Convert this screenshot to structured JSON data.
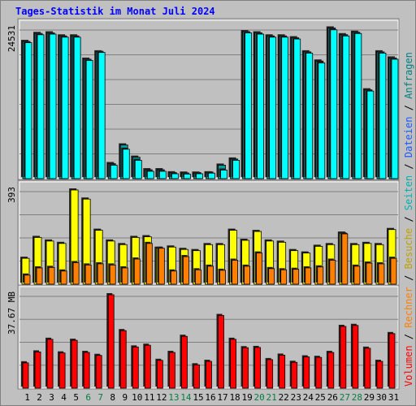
{
  "chart_data": {
    "type": "bar",
    "title": "Tages-Statistik im Monat Juli 2024",
    "categories": [
      "1",
      "2",
      "3",
      "4",
      "5",
      "6",
      "7",
      "8",
      "9",
      "10",
      "11",
      "12",
      "13",
      "14",
      "15",
      "16",
      "17",
      "18",
      "19",
      "20",
      "21",
      "22",
      "23",
      "24",
      "25",
      "26",
      "27",
      "28",
      "29",
      "30",
      "31"
    ],
    "weekend_days": [
      "6",
      "7",
      "13",
      "14",
      "20",
      "21",
      "27",
      "28"
    ],
    "panels": [
      {
        "id": "requests",
        "max_label": "24531",
        "max_value": 24531,
        "series": [
          {
            "name": "Anfragen",
            "color": "#00a0a0",
            "values": [
              22400,
              23700,
              23800,
              23300,
              23300,
              19500,
              20700,
              2450,
              5500,
              3500,
              1450,
              1450,
              950,
              900,
              900,
              950,
              2200,
              3200,
              24000,
              23800,
              23300,
              23300,
              23000,
              20700,
              19200,
              24600,
              23500,
              23900,
              14500,
              20700,
              19700
            ]
          },
          {
            "name": "Dateien",
            "color": "#1e5aff",
            "values": [
              0,
              0,
              0,
              0,
              0,
              0,
              0,
              0,
              0,
              0,
              0,
              0,
              0,
              0,
              0,
              0,
              0,
              0,
              0,
              0,
              0,
              0,
              0,
              0,
              0,
              0,
              0,
              0,
              0,
              0,
              0
            ]
          },
          {
            "name": "Seiten",
            "color": "#00ffff",
            "values": [
              22200,
              23500,
              23600,
              23100,
              23100,
              19300,
              20600,
              2200,
              4800,
              3000,
              1200,
              1200,
              800,
              750,
              800,
              900,
              1400,
              3000,
              23800,
              23600,
              23100,
              23100,
              22800,
              20500,
              18900,
              24300,
              23300,
              23700,
              14300,
              20500,
              19500
            ]
          }
        ]
      },
      {
        "id": "visits",
        "max_label": "393",
        "max_value": 393,
        "series": [
          {
            "name": "Besuche",
            "color": "#ffff00",
            "values": [
              108,
              195,
              180,
              170,
              393,
              355,
              225,
              180,
              165,
              195,
              198,
              150,
              155,
              145,
              140,
              165,
              165,
              225,
              183,
              220,
              180,
              175,
              140,
              130,
              158,
              165,
              213,
              165,
              170,
              165,
              228
            ]
          },
          {
            "name": "Rechner",
            "color": "#ff8000",
            "values": [
              38,
              68,
              70,
              55,
              90,
              80,
              85,
              80,
              68,
              105,
              170,
              150,
              55,
              115,
              60,
              75,
              58,
              100,
              75,
              130,
              65,
              60,
              62,
              68,
              72,
              100,
              210,
              75,
              88,
              85,
              108
            ]
          }
        ]
      },
      {
        "id": "volume",
        "max_label": "37.67 MB",
        "max_value": 37.67,
        "series": [
          {
            "name": "Volumen",
            "color": "#ff0000",
            "values": [
              10.2,
              14.6,
              19.7,
              14.2,
              19.3,
              14.4,
              13.2,
              37.67,
              23.2,
              16.6,
              17.3,
              11.2,
              14.4,
              20.9,
              9.4,
              10.8,
              29.3,
              19.7,
              16.3,
              16.4,
              11.5,
              13.3,
              10.4,
              12.6,
              12.4,
              14.4,
              24.9,
              25.3,
              16.1,
              10.8,
              22.0
            ]
          }
        ]
      }
    ],
    "legend_order": [
      "Volumen",
      "Rechner",
      "Besuche",
      "Seiten",
      "Dateien",
      "Anfragen"
    ],
    "legend_separator": "/",
    "grid": true,
    "legend_position": "right-vertical"
  }
}
